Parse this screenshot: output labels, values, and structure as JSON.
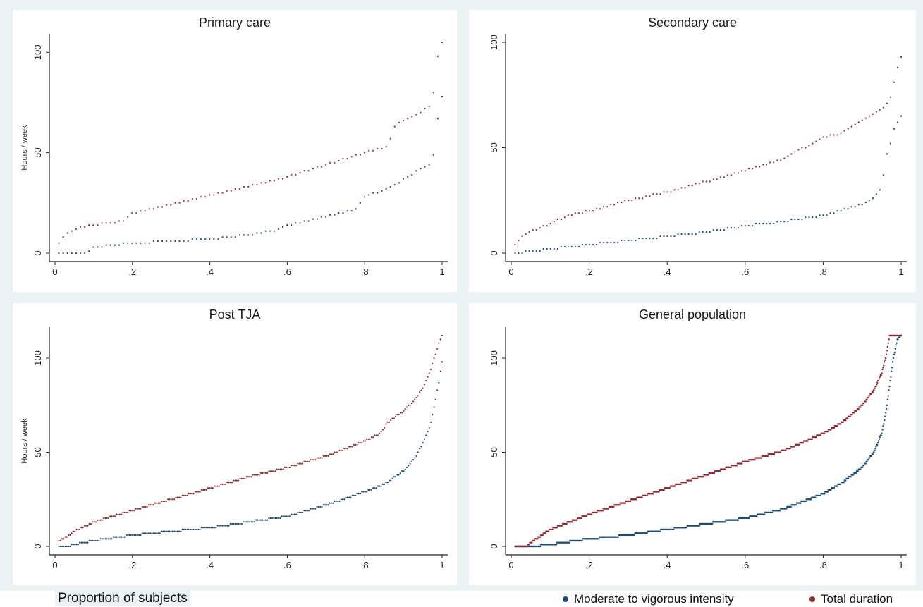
{
  "colors": {
    "series_mvi": "#1e4a72",
    "series_total": "#8e2a30",
    "axis": "#222222"
  },
  "figure": {
    "xlabel": "Proportion of subjects",
    "legend": [
      {
        "label": "Moderate to vigorous intensity",
        "color": "#1e4a72"
      },
      {
        "label": "Total duration",
        "color": "#8e2a30"
      }
    ]
  },
  "chart_data": [
    {
      "type": "scatter",
      "title": "Primary care",
      "ylabel": "Hours / week",
      "xlabel": "",
      "xlim": [
        0,
        1
      ],
      "ylim": [
        0,
        105
      ],
      "xticks": [
        "0",
        ".2",
        ".4",
        ".6",
        ".8",
        "1"
      ],
      "yticks": [
        "0",
        "50",
        "100"
      ],
      "npoints": 90,
      "series": [
        {
          "name": "Moderate to vigorous intensity",
          "x": [
            0.01,
            0.08,
            0.1,
            0.2,
            0.3,
            0.4,
            0.5,
            0.58,
            0.6,
            0.7,
            0.78,
            0.8,
            0.88,
            0.95,
            0.97,
            0.98,
            0.99,
            1.0
          ],
          "y": [
            0,
            0,
            3,
            5,
            6,
            7,
            9,
            12,
            14,
            18,
            22,
            28,
            34,
            43,
            44,
            51,
            69,
            78
          ]
        },
        {
          "name": "Total duration",
          "x": [
            0.01,
            0.03,
            0.05,
            0.1,
            0.18,
            0.2,
            0.3,
            0.4,
            0.5,
            0.6,
            0.7,
            0.78,
            0.86,
            0.88,
            0.9,
            0.93,
            0.96,
            0.97,
            0.98,
            0.99,
            1.0
          ],
          "y": [
            5,
            10,
            12,
            14,
            16,
            20,
            24,
            29,
            33,
            38,
            44,
            49,
            53,
            64,
            66,
            69,
            72,
            73,
            82,
            100,
            105
          ]
        }
      ]
    },
    {
      "type": "scatter",
      "title": "Secondary care",
      "ylabel": "",
      "xlabel": "",
      "xlim": [
        0,
        1
      ],
      "ylim": [
        0,
        100
      ],
      "xticks": [
        "0",
        ".2",
        ".4",
        ".6",
        ".8",
        "1"
      ],
      "yticks": [
        "0",
        "50",
        "100"
      ],
      "npoints": 110,
      "series": [
        {
          "name": "Moderate to vigorous intensity",
          "x": [
            0.01,
            0.1,
            0.2,
            0.3,
            0.4,
            0.5,
            0.6,
            0.7,
            0.8,
            0.9,
            0.93,
            0.95,
            0.96,
            0.97,
            0.98,
            0.99,
            1.0
          ],
          "y": [
            0,
            2,
            4,
            6,
            8,
            10,
            13,
            15,
            18,
            23,
            26,
            31,
            45,
            50,
            58,
            62,
            65
          ]
        },
        {
          "name": "Total duration",
          "x": [
            0.01,
            0.03,
            0.06,
            0.1,
            0.15,
            0.2,
            0.3,
            0.4,
            0.5,
            0.6,
            0.7,
            0.8,
            0.85,
            0.9,
            0.95,
            0.97,
            0.98,
            0.99,
            1.0
          ],
          "y": [
            4,
            8,
            11,
            14,
            18,
            20,
            25,
            29,
            34,
            39,
            45,
            55,
            57,
            63,
            68,
            72,
            80,
            87,
            93
          ]
        }
      ]
    },
    {
      "type": "scatter",
      "title": "Post TJA",
      "ylabel": "Hours / week",
      "xlabel": "",
      "xlim": [
        0,
        1
      ],
      "ylim": [
        0,
        112
      ],
      "xticks": [
        "0",
        ".2",
        ".4",
        ".6",
        ".8",
        "1"
      ],
      "yticks": [
        "0",
        "50",
        "100"
      ],
      "npoints": 240,
      "series": [
        {
          "name": "Moderate to vigorous intensity",
          "x": [
            0.01,
            0.03,
            0.05,
            0.1,
            0.2,
            0.3,
            0.4,
            0.5,
            0.6,
            0.7,
            0.8,
            0.85,
            0.9,
            0.93,
            0.95,
            0.97,
            0.98,
            0.99,
            1.0
          ],
          "y": [
            0,
            0,
            1,
            3,
            6,
            8,
            10,
            13,
            16,
            22,
            29,
            33,
            40,
            47,
            55,
            65,
            75,
            85,
            98
          ]
        },
        {
          "name": "Total duration",
          "x": [
            0.01,
            0.03,
            0.05,
            0.1,
            0.2,
            0.3,
            0.4,
            0.5,
            0.6,
            0.7,
            0.8,
            0.84,
            0.86,
            0.9,
            0.93,
            0.95,
            0.97,
            0.98,
            0.99,
            1.0
          ],
          "y": [
            3,
            5,
            8,
            13,
            19,
            25,
            31,
            37,
            42,
            48,
            56,
            60,
            66,
            72,
            78,
            84,
            93,
            100,
            107,
            112
          ]
        }
      ]
    },
    {
      "type": "scatter",
      "title": "General population",
      "ylabel": "",
      "xlabel": "",
      "xlim": [
        0,
        1
      ],
      "ylim": [
        0,
        112
      ],
      "xticks": [
        "0",
        ".2",
        ".4",
        ".6",
        ".8",
        "1"
      ],
      "yticks": [
        "0",
        "50",
        "100"
      ],
      "npoints": 600,
      "series": [
        {
          "name": "Moderate to vigorous intensity",
          "x": [
            0.01,
            0.05,
            0.1,
            0.2,
            0.3,
            0.4,
            0.5,
            0.6,
            0.7,
            0.8,
            0.85,
            0.9,
            0.93,
            0.95,
            0.96,
            0.97,
            0.98,
            0.99,
            1.0
          ],
          "y": [
            0,
            0,
            1,
            4,
            6,
            9,
            12,
            15,
            20,
            28,
            34,
            42,
            50,
            60,
            70,
            85,
            100,
            110,
            112
          ]
        },
        {
          "name": "Total duration",
          "x": [
            0.01,
            0.04,
            0.05,
            0.1,
            0.2,
            0.3,
            0.4,
            0.5,
            0.6,
            0.7,
            0.8,
            0.85,
            0.9,
            0.93,
            0.95,
            0.96,
            0.97,
            1.0
          ],
          "y": [
            0,
            0,
            2,
            9,
            17,
            24,
            31,
            38,
            45,
            51,
            60,
            66,
            75,
            83,
            92,
            100,
            112,
            112
          ]
        }
      ]
    }
  ]
}
